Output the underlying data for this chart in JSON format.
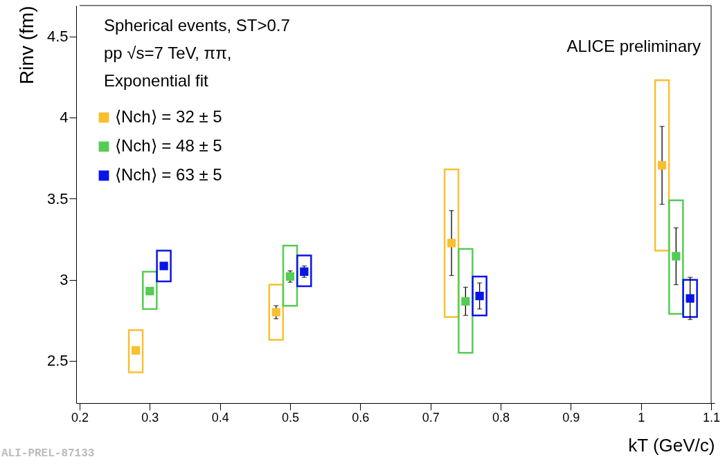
{
  "chart_data": {
    "type": "scatter",
    "xlabel": "kT (GeV/c)",
    "ylabel": "Rinv (fm)",
    "annotations": [
      "Spherical events,  ST>0.7",
      "pp √s=7 TeV, ππ,",
      "Exponential fit",
      "ALICE preliminary",
      "ALI-PREL-87133"
    ],
    "xlim": [
      0.2,
      1.1
    ],
    "xticks": [
      0.2,
      0.3,
      0.4,
      0.5,
      0.6,
      0.7,
      0.8,
      0.9,
      1,
      1.1
    ],
    "ylim": [
      2.24,
      4.69
    ],
    "yticks": [
      2.5,
      3,
      3.5,
      4,
      4.5
    ],
    "grid": false,
    "legend": "top left",
    "marker": "square",
    "series": [
      {
        "type": "bar",
        "color": "#f8c030",
        "x": [
          0.28,
          0.48,
          0.73,
          1.03
        ],
        "base": [
          2.43,
          2.63,
          2.77,
          3.18
        ],
        "values": [
          0.26,
          0.34,
          0.91,
          1.05
        ]
      },
      {
        "type": "bar",
        "color": "#55cc55",
        "x": [
          0.3,
          0.5,
          0.75,
          1.05
        ],
        "base": [
          2.82,
          2.84,
          2.55,
          2.79
        ],
        "values": [
          0.23,
          0.37,
          0.64,
          0.7
        ]
      },
      {
        "type": "bar",
        "color": "#0a14e6",
        "x": [
          0.32,
          0.52,
          0.77,
          1.07
        ],
        "base": [
          2.99,
          2.96,
          2.78,
          2.77
        ],
        "values": [
          0.19,
          0.19,
          0.24,
          0.23
        ]
      },
      {
        "type": "scatter",
        "name": "⟨Nch⟩ = 32 ± 5",
        "color": "#f8c030",
        "x": [
          0.28,
          0.48,
          0.73,
          1.03
        ],
        "values": [
          2.565,
          2.8,
          3.226,
          3.705
        ],
        "errors": [
          null,
          0.04,
          0.2,
          0.24
        ]
      },
      {
        "type": "scatter",
        "name": "⟨Nch⟩ = 48 ± 5",
        "color": "#55cc55",
        "x": [
          0.3,
          0.5,
          0.75,
          1.05
        ],
        "values": [
          2.93,
          3.02,
          2.867,
          3.145
        ],
        "errors": [
          null,
          0.035,
          0.087,
          0.175
        ]
      },
      {
        "type": "scatter",
        "name": "⟨Nch⟩ = 63 ± 5",
        "color": "#0a14e6",
        "x": [
          0.32,
          0.52,
          0.77,
          1.07
        ],
        "values": [
          3.085,
          3.05,
          2.9,
          2.885
        ],
        "errors": [
          null,
          0.035,
          0.08,
          0.13
        ]
      }
    ]
  }
}
